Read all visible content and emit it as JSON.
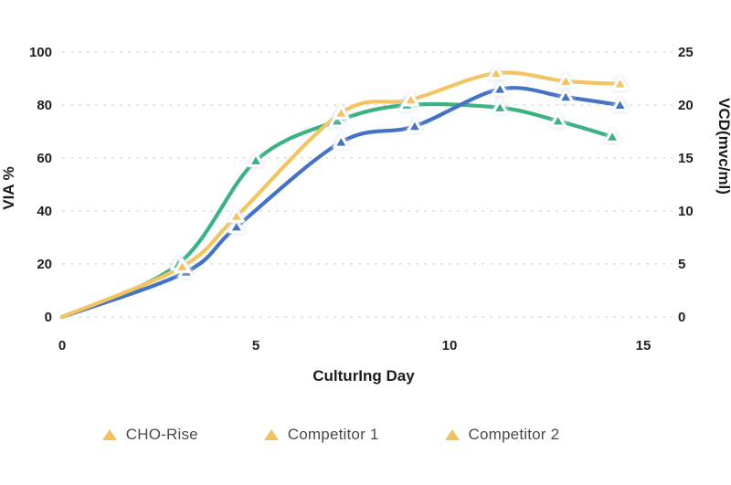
{
  "chart_data": {
    "type": "line",
    "title": "",
    "x_axis": {
      "label": "CulturIng Day",
      "ticks": [
        0,
        5,
        10,
        15
      ],
      "range": [
        0,
        15.8
      ]
    },
    "y_left_axis": {
      "label": "VIA %",
      "ticks": [
        0,
        20,
        40,
        60,
        80,
        100
      ],
      "range": [
        0,
        105
      ]
    },
    "y_right_axis": {
      "label": "VCD(mvc/ml)",
      "ticks": [
        0,
        5,
        10,
        15,
        20,
        25
      ],
      "range": [
        0,
        26.25
      ]
    },
    "grid": "horizontal-dashed",
    "legend_position": "bottom",
    "marker_shape": "triangle-up",
    "series": [
      {
        "name": "Competitor 2",
        "color": "#3CB181",
        "x": [
          0,
          3.0,
          5.0,
          7.1,
          8.9,
          11.3,
          12.8,
          14.2
        ],
        "via_pct": [
          0,
          20,
          59,
          74,
          80,
          79,
          74,
          68
        ],
        "vcd": [
          0,
          5.0,
          14.75,
          18.5,
          20.0,
          19.75,
          18.5,
          17.0
        ]
      },
      {
        "name": "Competitor 1",
        "color": "#4573C4",
        "x": [
          0,
          3.2,
          4.5,
          7.2,
          9.1,
          11.3,
          13.0,
          14.4
        ],
        "via_pct": [
          0,
          17,
          34,
          66,
          72,
          86,
          83,
          80
        ],
        "vcd": [
          0,
          4.25,
          8.5,
          16.5,
          18.0,
          21.5,
          20.75,
          20.0
        ]
      },
      {
        "name": "CHO-Rise",
        "color": "#F4C462",
        "x": [
          0,
          3.1,
          4.5,
          7.2,
          9.0,
          11.2,
          13.0,
          14.4
        ],
        "via_pct": [
          0,
          19,
          38,
          77,
          82,
          92,
          89,
          88
        ],
        "vcd": [
          0,
          4.75,
          9.5,
          19.25,
          20.5,
          23.0,
          22.25,
          22.0
        ]
      }
    ]
  },
  "legend": {
    "marker_color": "#F2C05E",
    "items": [
      {
        "label": "CHO-Rise"
      },
      {
        "label": "Competitor 1"
      },
      {
        "label": "Competitor 2"
      }
    ]
  },
  "colors": {
    "grid": "#dedede",
    "tick_text": "#1f1f1f",
    "legend_text": "#4a4a4a",
    "marker_glow": "#cddcf2"
  }
}
